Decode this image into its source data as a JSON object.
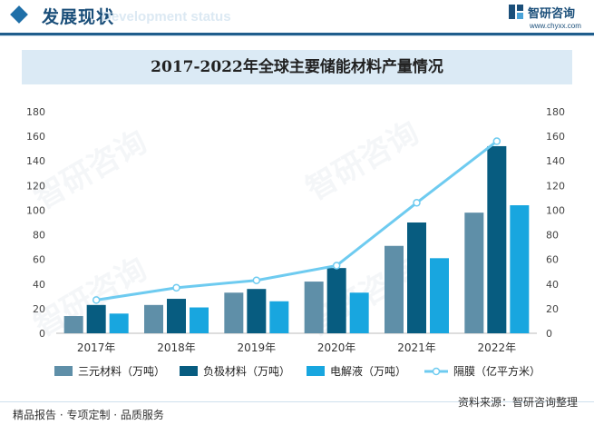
{
  "header": {
    "title": "发展现状",
    "subtitle": "Development status",
    "brand_name": "智研咨询",
    "brand_url": "www.chyxx.com"
  },
  "watermark": {
    "text": "智研咨询"
  },
  "chart_data": {
    "type": "bar",
    "title": "2017-2022年全球主要储能材料产量情况",
    "categories": [
      "2017年",
      "2018年",
      "2019年",
      "2020年",
      "2021年",
      "2022年"
    ],
    "ylim": [
      0,
      180
    ],
    "y2lim": [
      0,
      180
    ],
    "yticks": [
      0,
      20,
      40,
      60,
      80,
      100,
      120,
      140,
      160,
      180
    ],
    "grid": false,
    "legend_position": "bottom",
    "series": [
      {
        "name": "三元材料（万吨）",
        "type": "bar",
        "axis": "left",
        "color": "#5f8fa8",
        "values": [
          14,
          23,
          33,
          42,
          71,
          98
        ]
      },
      {
        "name": "负极材料（万吨）",
        "type": "bar",
        "axis": "left",
        "color": "#075c80",
        "values": [
          23,
          28,
          36,
          53,
          90,
          152
        ]
      },
      {
        "name": "电解液（万吨）",
        "type": "bar",
        "axis": "left",
        "color": "#18a6df",
        "values": [
          16,
          21,
          26,
          33,
          61,
          104
        ]
      },
      {
        "name": "隔膜（亿平方米）",
        "type": "line",
        "axis": "right",
        "color": "#6ecbf0",
        "values": [
          27,
          37,
          43,
          55,
          106,
          156
        ]
      }
    ]
  },
  "footer": {
    "left": "精品报告 · 专项定制 · 品质服务",
    "source": "资料来源：智研咨询整理"
  }
}
